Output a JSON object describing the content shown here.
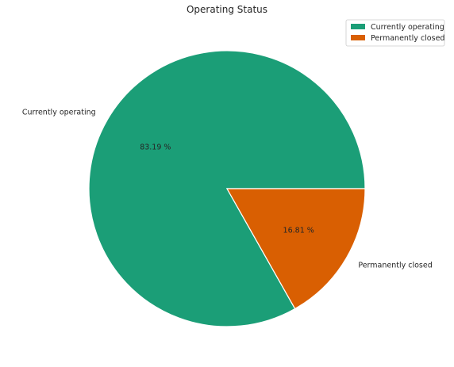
{
  "chart_data": {
    "type": "pie",
    "title": "Operating Status",
    "slices": [
      {
        "label": "Currently operating",
        "value": 83.19,
        "pct_label": "83.19 %",
        "color": "#1b9e77"
      },
      {
        "label": "Permanently closed",
        "value": 16.81,
        "pct_label": "16.81 %",
        "color": "#d95f02"
      }
    ],
    "legend": {
      "placement": "top-right",
      "entries": [
        "Currently operating",
        "Permanently closed"
      ]
    }
  }
}
